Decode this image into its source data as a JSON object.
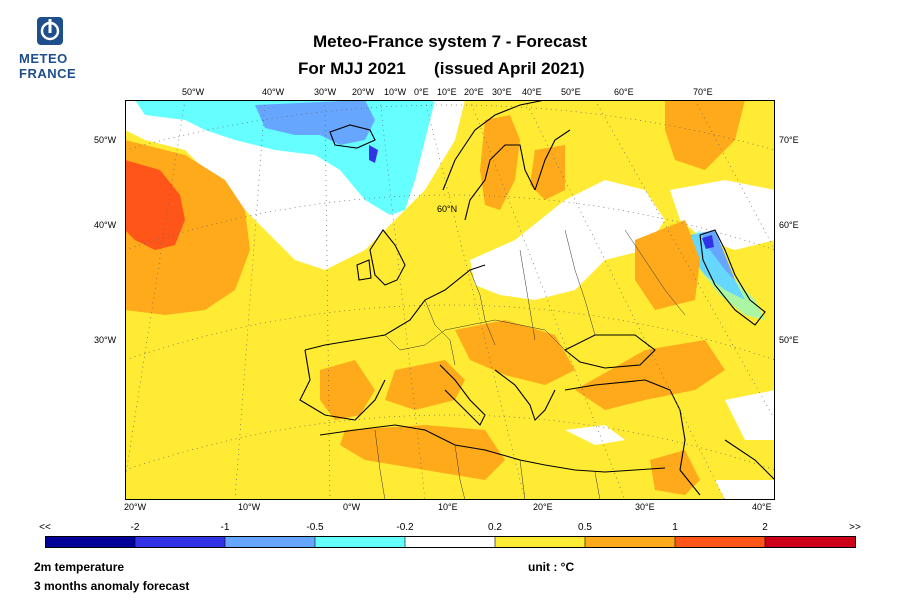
{
  "logo": {
    "line1": "METEO",
    "line2": "FRANCE"
  },
  "title": {
    "line1": "Meteo-France system 7  -  Forecast",
    "line2": "For MJJ 2021      (issued April 2021)"
  },
  "axes": {
    "top": [
      "50°W",
      "40°W",
      "30°W",
      "20°W",
      "10°W",
      "0°E",
      "10°E",
      "20°E",
      "30°E",
      "40°E",
      "50°E",
      "60°E",
      "70°E"
    ],
    "bottom": [
      "20°W",
      "10°W",
      "0°W",
      "10°E",
      "20°E",
      "30°E",
      "40°E"
    ],
    "left": [
      "50°W",
      "40°W",
      "30°W"
    ],
    "right": [
      "70°E",
      "60°E",
      "50°E"
    ],
    "inside": "60°N"
  },
  "colorbar": {
    "labels": [
      "<<",
      "-2",
      "-1",
      "-0.5",
      "-0.2",
      "0.2",
      "0.5",
      "1",
      "2",
      ">>"
    ],
    "colors": [
      "#000099",
      "#3333e6",
      "#66a6ff",
      "#66ffff",
      "#ffffff",
      "#ffeb33",
      "#ffaa1a",
      "#ff5519",
      "#cc0019"
    ]
  },
  "footer": {
    "left_line1": "2m temperature",
    "left_line2": "3 months anomaly forecast",
    "unit": "unit : °C"
  },
  "map_colors": {
    "pale_yellow": "#ffeb33",
    "orange": "#ffaa1a",
    "red": "#ff5519",
    "light_blue": "#66ffff",
    "mid_blue": "#66a6ff",
    "dark_blue": "#3333e6",
    "white": "#ffffff"
  }
}
